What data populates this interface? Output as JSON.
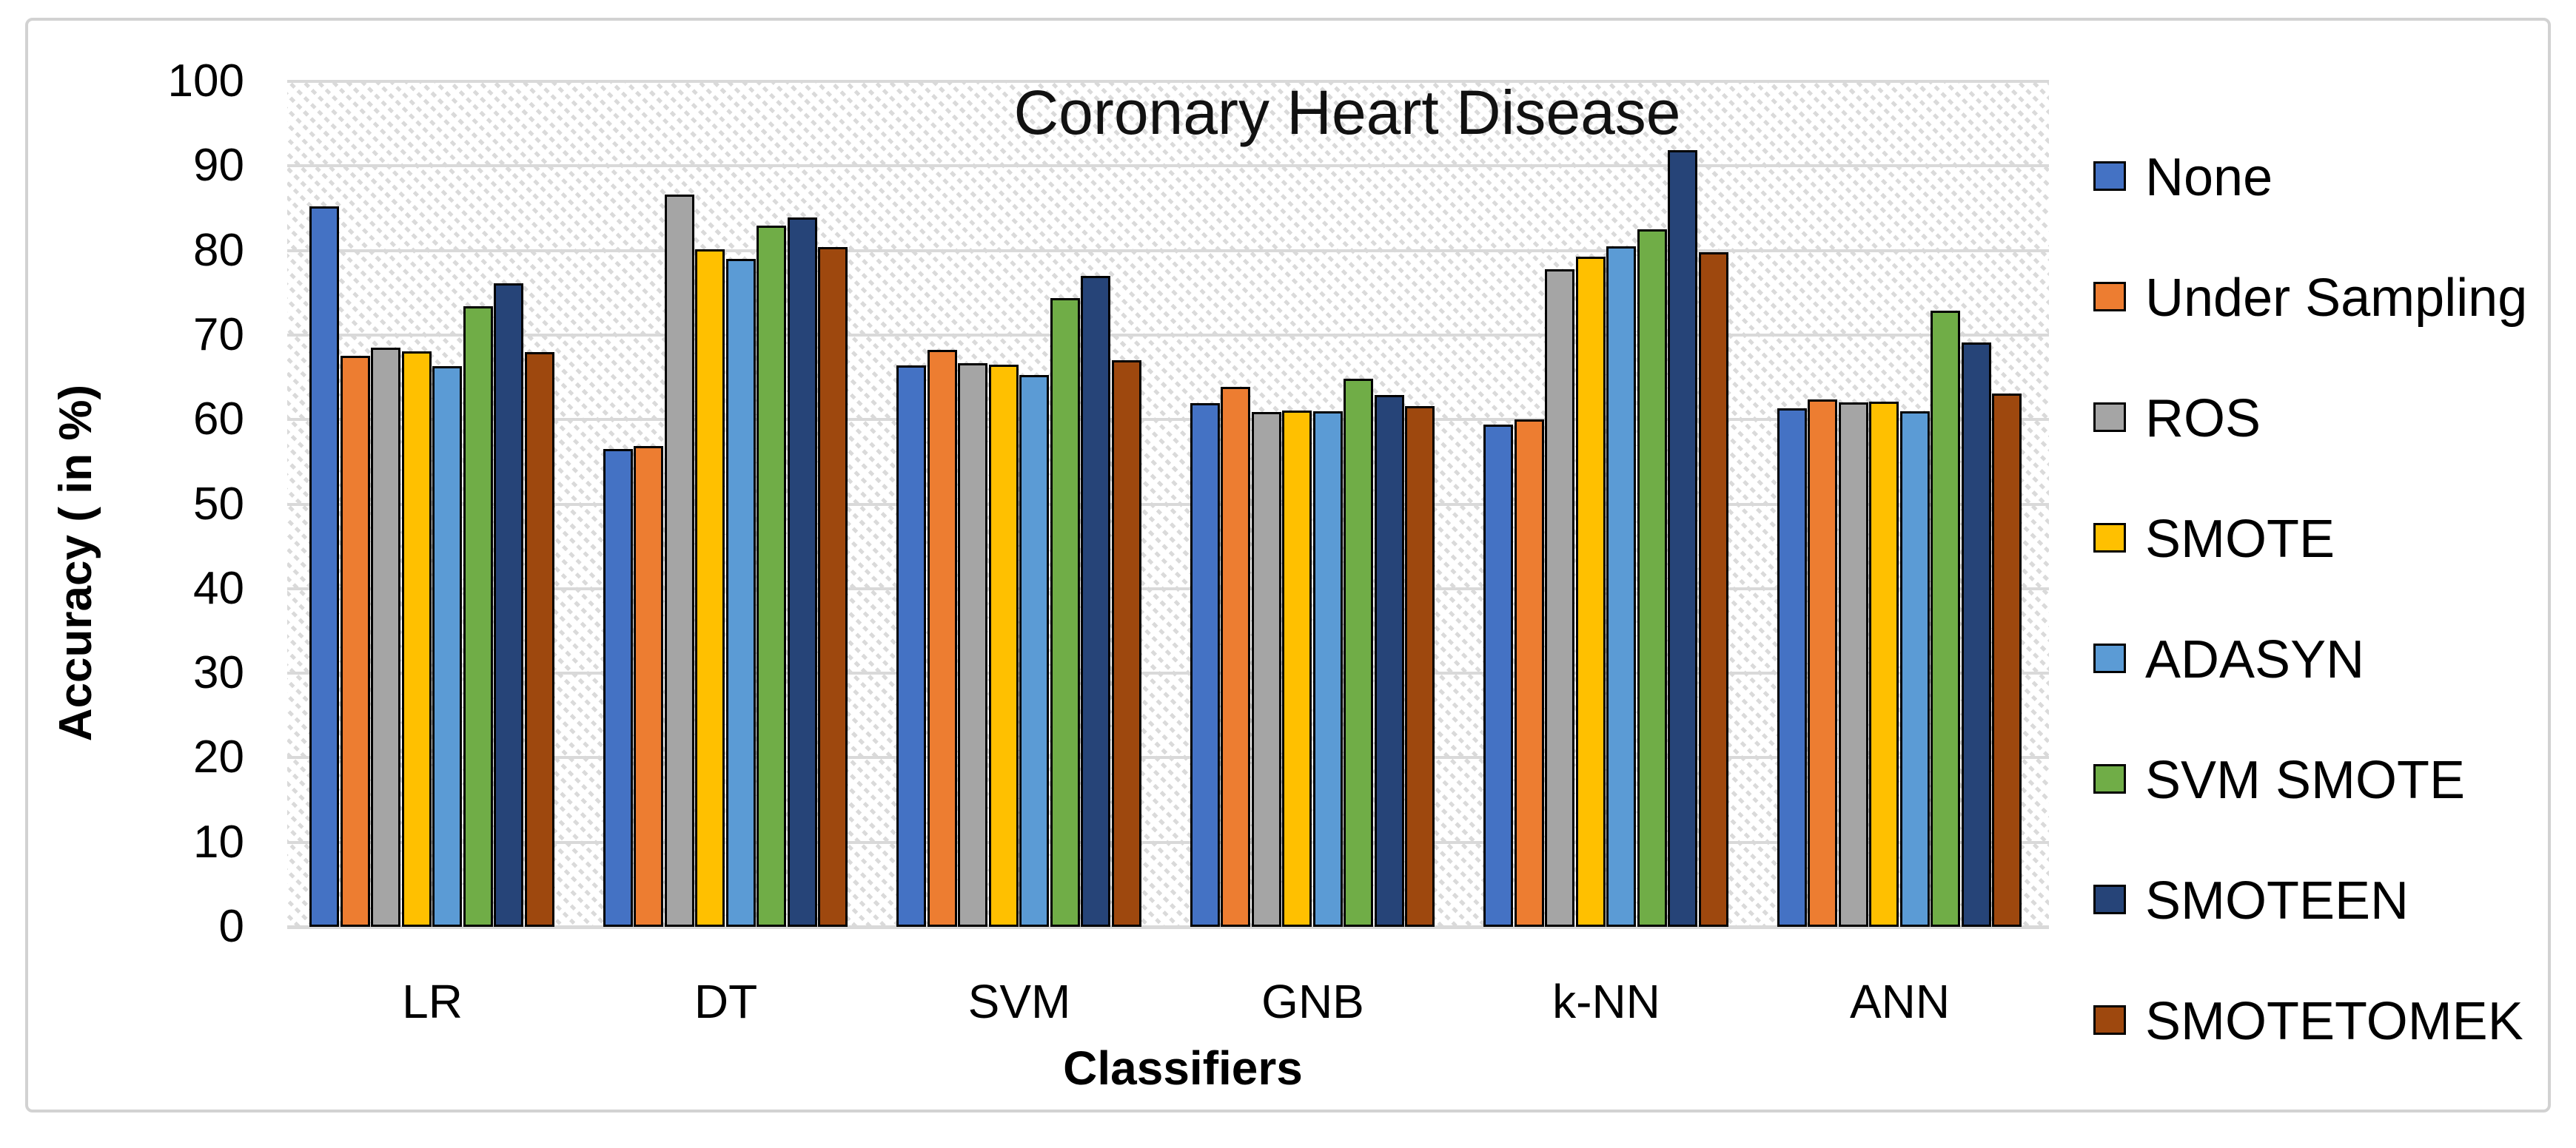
{
  "title": "Coronary Heart Disease",
  "y_axis": {
    "title": "Accuracy ( in %)",
    "ticks": [
      0,
      10,
      20,
      30,
      40,
      50,
      60,
      70,
      80,
      90,
      100
    ]
  },
  "x_axis": {
    "title": "Classifiers",
    "categories": [
      "LR",
      "DT",
      "SVM",
      "GNB",
      "k-NN",
      "ANN"
    ]
  },
  "legend": {
    "entries": [
      "None",
      "Under Sampling",
      "ROS",
      "SMOTE",
      "ADASYN",
      "SVM SMOTE",
      "SMOTEEN",
      "SMOTETOMEK"
    ]
  },
  "colors": {
    "gridline": "#d9d9d9",
    "bar_border": "#000000",
    "hatch": "#dadada"
  },
  "chart_data": {
    "type": "bar",
    "title": "Coronary Heart Disease",
    "xlabel": "Classifiers",
    "ylabel": "Accuracy ( in %)",
    "ylim": [
      0,
      100
    ],
    "grid": true,
    "legend_position": "right",
    "categories": [
      "LR",
      "DT",
      "SVM",
      "GNB",
      "k-NN",
      "ANN"
    ],
    "series": [
      {
        "name": "None",
        "color": "#4472C4",
        "values": [
          85.2,
          56.5,
          66.4,
          61.9,
          59.4,
          61.3
        ]
      },
      {
        "name": "Under Sampling",
        "color": "#ED7D31",
        "values": [
          67.5,
          56.9,
          68.2,
          63.9,
          60.0,
          62.4
        ]
      },
      {
        "name": "ROS",
        "color": "#A5A5A5",
        "values": [
          68.5,
          86.6,
          66.7,
          60.9,
          77.8,
          62.0
        ]
      },
      {
        "name": "SMOTE",
        "color": "#FFC000",
        "values": [
          68.1,
          80.1,
          66.5,
          61.1,
          79.3,
          62.1
        ]
      },
      {
        "name": "ADASYN",
        "color": "#5B9BD5",
        "values": [
          66.3,
          79.0,
          65.3,
          61.0,
          80.5,
          61.0
        ]
      },
      {
        "name": "SVM SMOTE",
        "color": "#70AD47",
        "values": [
          73.4,
          82.9,
          74.4,
          64.8,
          82.5,
          72.9
        ]
      },
      {
        "name": "SMOTEEN",
        "color": "#264478",
        "values": [
          76.1,
          83.9,
          77.0,
          62.9,
          91.9,
          69.1
        ]
      },
      {
        "name": "SMOTETOMEK",
        "color": "#9E480E",
        "values": [
          68.0,
          80.4,
          67.0,
          61.6,
          79.8,
          63.1
        ]
      }
    ]
  }
}
